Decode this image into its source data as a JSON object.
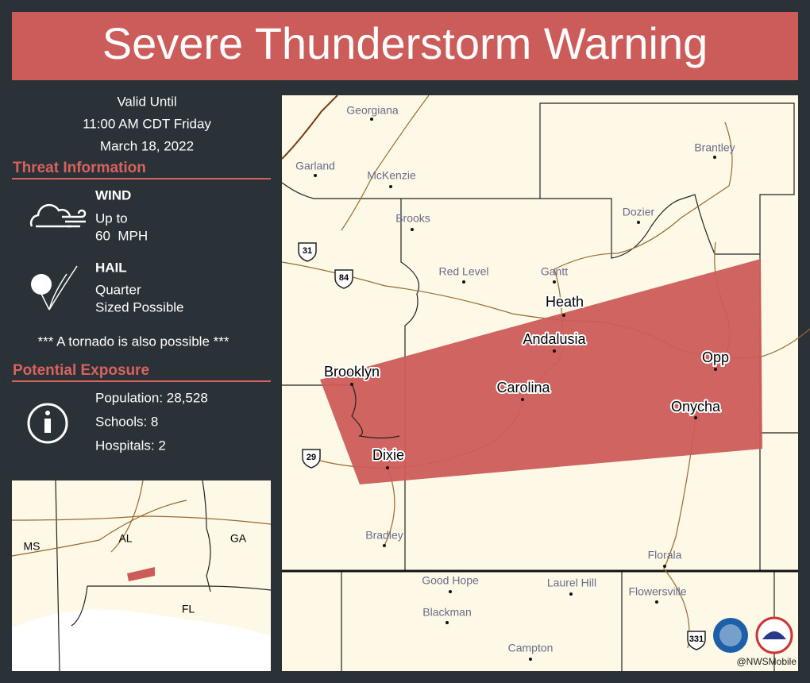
{
  "header": {
    "title": "Severe Thunderstorm Warning"
  },
  "valid": [
    "Valid Until",
    "11:00 AM CDT Friday",
    "March 18, 2022"
  ],
  "threat": {
    "heading": "Threat Information",
    "items": [
      {
        "label": "WIND",
        "lines": [
          "Up to",
          "60  MPH"
        ]
      },
      {
        "label": "HAIL",
        "lines": [
          "Quarter",
          "Sized Possible"
        ]
      }
    ],
    "note": "*** A tornado is also possible ***"
  },
  "exposure": {
    "heading": "Potential Exposure",
    "lines": [
      "Population: 28,528",
      "Schools: 8",
      "Hospitals: 2"
    ]
  },
  "inset": {
    "labels": [
      "MS",
      "AL",
      "GA",
      "FL"
    ]
  },
  "map": {
    "places": [
      "Georgiana",
      "Garland",
      "McKenzie",
      "Brantley",
      "Dozier",
      "Brooks",
      "Red Level",
      "Gantt",
      "Heath",
      "Andalusia",
      "Opp",
      "Brooklyn",
      "Carolina",
      "Onycha",
      "Dixie",
      "Bradley",
      "Florala",
      "Good Hope",
      "Laurel Hill",
      "Flowersville",
      "Blackman",
      "Campton"
    ],
    "highways": [
      "31",
      "84",
      "29",
      "331"
    ]
  },
  "credit": "@NWSMobile"
}
